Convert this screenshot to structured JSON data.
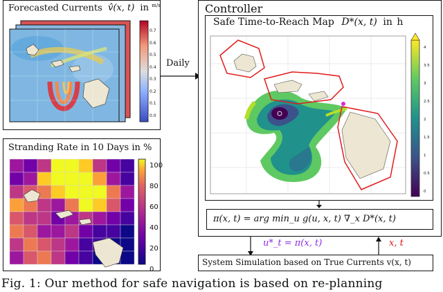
{
  "forecast_panel": {
    "title": "Forecasted Currents",
    "title_formula": "v̂(x, t)",
    "title_unit_prefix": "in",
    "title_unit": "m/s",
    "colorbar_ticks": [
      "0.7",
      "0.6",
      "0.5",
      "0.4",
      "0.3",
      "0.2",
      "0.1",
      "0.0"
    ]
  },
  "daily_label": "Daily",
  "stranding_panel": {
    "title": "Stranding Rate in 10 Days in %",
    "colorbar_ticks": [
      "100",
      "80",
      "60",
      "40",
      "20",
      "0"
    ]
  },
  "controller": {
    "title": "Controller",
    "map_title": "Safe Time-to-Reach Map",
    "map_formula": "D*(x, t)",
    "map_unit_prefix": "in",
    "map_unit": "h",
    "colorbar_ticks": [
      "4",
      "3.5",
      "3",
      "2.5",
      "2",
      "1.5",
      "1",
      "0.5",
      "0"
    ]
  },
  "policy_formula": "π(x, t) = arg min_u g(u, x, t) ∇_x D*(x, t)",
  "action_label": "u*_t = π(x, t)",
  "state_label": "x, t",
  "simulation_label": "System Simulation based on True Currents v(x, t)",
  "caption": "Fig. 1: Our method for safe navigation is based on re-planning"
}
